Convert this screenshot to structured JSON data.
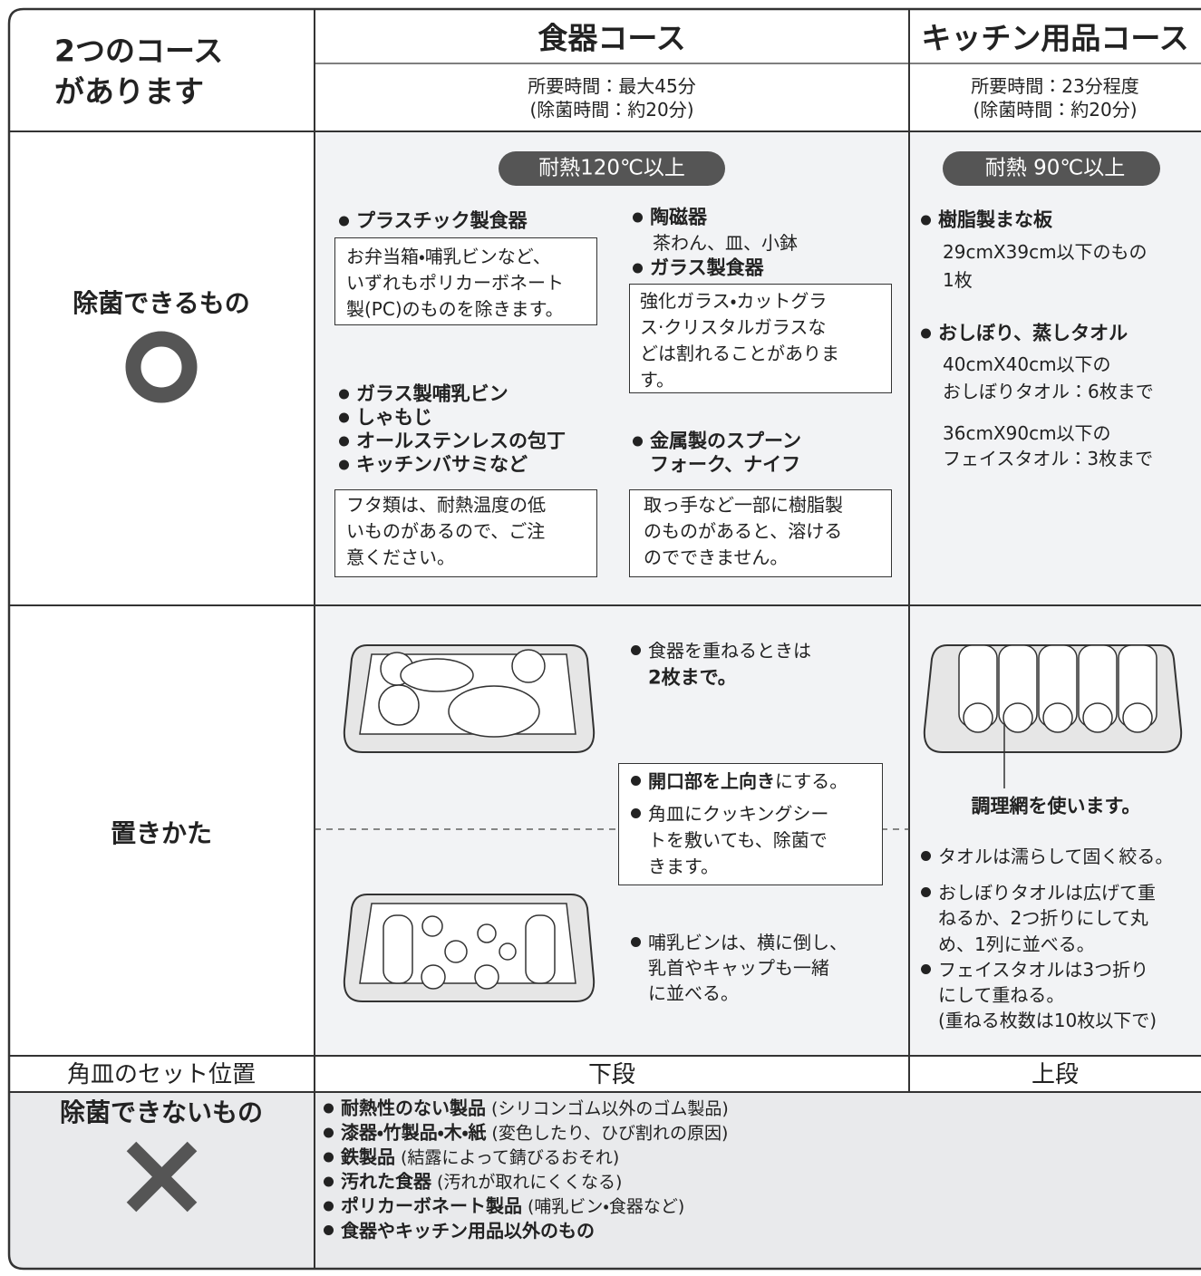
{
  "header": {
    "title_lines": [
      "2つのコース",
      "があります"
    ]
  },
  "courses": [
    {
      "name": "食器コース",
      "time_lines": [
        "所要時間：最大45分",
        "(除菌時間：約20分)"
      ],
      "heat_badge": "耐熱120℃以上",
      "tray_position": "下段"
    },
    {
      "name": "キッチン用品コース",
      "time_lines": [
        "所要時間：23分程度",
        "(除菌時間：約20分)"
      ],
      "heat_badge": "耐熱 90℃以上",
      "tray_position": "上段"
    }
  ],
  "sterilizable": {
    "label": "除菌できるもの",
    "dish": {
      "plastic": {
        "title": "プラスチック製食器",
        "note_lines": [
          "お弁当箱・哺乳ビンなど、",
          "いずれもポリカーボネート",
          "製(PC)のものを除きます。"
        ]
      },
      "ceramic": {
        "title": "陶磁器",
        "detail": "茶わん、皿、小鉢"
      },
      "glass": {
        "title": "ガラス製食器",
        "note_lines": [
          "強化ガラス・カットグラ",
          "ス·クリスタルガラスな",
          "どは割れることがありま",
          "す。"
        ]
      },
      "others": {
        "titles": [
          "ガラス製哺乳ビン",
          "しゃもじ",
          "オールステンレスの包丁",
          "キッチンバサミなど"
        ],
        "note_lines": [
          "フタ類は、耐熱温度の低",
          "いものがあるので、ご注",
          "意ください。"
        ]
      },
      "metal": {
        "title_lines": [
          "金属製のスプーン",
          "フォーク、ナイフ"
        ],
        "note_lines": [
          "取っ手など一部に樹脂製",
          "のものがあると、溶ける",
          "のでできません。"
        ]
      }
    },
    "kitchen": {
      "items": [
        {
          "title": "樹脂製まな板",
          "lines": [
            "29cmX39cm以下のもの",
            "1枚"
          ]
        },
        {
          "title": "おしぼり、蒸しタオル",
          "lines": [
            "40cmX40cm以下の",
            "おしぼりタオル：6枚まで",
            "36cmX90cm以下の",
            "フェイスタオル：3枚まで"
          ]
        }
      ]
    }
  },
  "placement": {
    "label": "置きかた",
    "dish": {
      "stack_note": {
        "text": "食器を重ねるときは",
        "bold": "2枚まで。"
      },
      "box": {
        "opening": {
          "bold": "開口部を上向き",
          "text": "にする。"
        },
        "sheet_lines": [
          "角皿にクッキングシー",
          "トを敷いても、除菌で",
          "きます。"
        ]
      },
      "bottle_note_lines": [
        "哺乳ビンは、横に倒し、",
        "乳首やキャップも一緒",
        "に並べる。"
      ]
    },
    "kitchen": {
      "caption": "調理網を使います。",
      "notes": [
        [
          "タオルは濡らして固く絞る。"
        ],
        [
          "おしぼりタオルは広げて重",
          "ねるか、2つ折りにして丸",
          "め、1列に並べる。"
        ],
        [
          "フェイスタオルは3つ折り",
          "にして重ねる。",
          "(重ねる枚数は10枚以下で)"
        ]
      ]
    }
  },
  "tray_row": {
    "label": "角皿のセット位置"
  },
  "not_sterilizable": {
    "label": "除菌できないもの",
    "items": [
      {
        "bold": "耐熱性のない製品",
        "note": "(シリコンゴム以外のゴム製品)"
      },
      {
        "bold": "漆器・竹製品・木・紙",
        "note": "(変色したり、ひび割れの原因)"
      },
      {
        "bold": "鉄製品",
        "note": "(結露によって錆びるおそれ)"
      },
      {
        "bold": "汚れた食器",
        "note": "(汚れが取れにくくなる)"
      },
      {
        "bold": "ポリカーボネート製品",
        "note": "(哺乳ビン・食器など)"
      },
      {
        "bold": "食器やキッチン用品以外のもの"
      }
    ]
  }
}
